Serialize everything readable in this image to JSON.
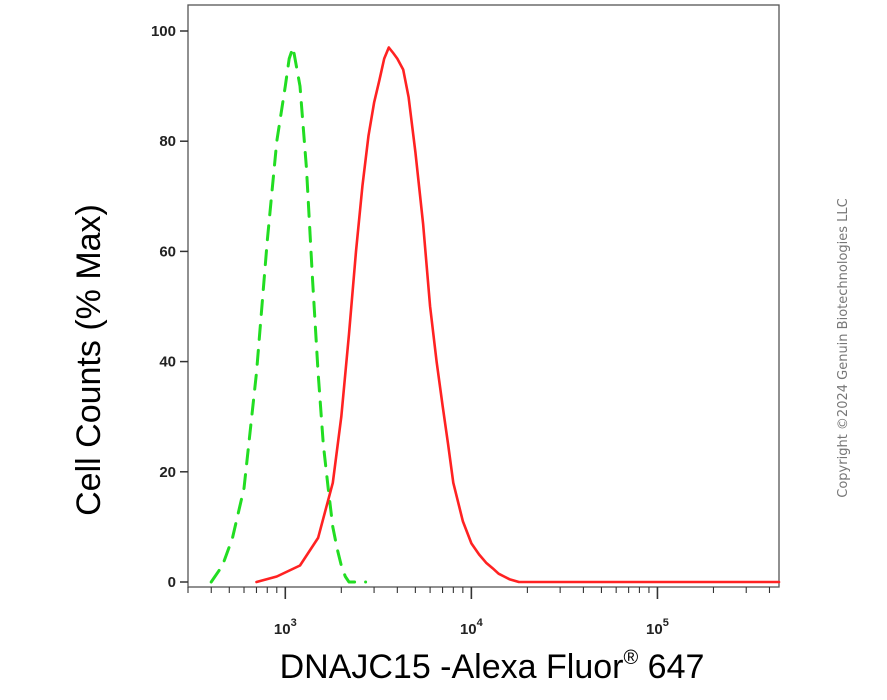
{
  "chart_data": {
    "type": "line",
    "title": "",
    "xlabel": "DNAJC15 -Alexa Fluor",
    "xlabel_sup": "®",
    "xlabel_tail": " 647",
    "ylabel": "Cell Counts (% Max)",
    "x_scale": "log",
    "xlim": [
      300,
      450000
    ],
    "ylim": [
      0,
      100
    ],
    "grid": false,
    "legend": "none",
    "y_ticks": [
      0,
      20,
      40,
      60,
      80,
      100
    ],
    "y_tick_labels": [
      "0",
      "20",
      "40",
      "60",
      "80",
      "100"
    ],
    "x_major_ticks": [
      {
        "value": 1000,
        "base": "10",
        "exp": "3"
      },
      {
        "value": 10000,
        "base": "10",
        "exp": "4"
      },
      {
        "value": 100000,
        "base": "10",
        "exp": "5"
      }
    ],
    "series": [
      {
        "color": "#22dd22",
        "dash": true,
        "x": [
          400,
          460,
          520,
          600,
          700,
          800,
          900,
          1000,
          1050,
          1100,
          1200,
          1300,
          1400,
          1500,
          1600,
          1700,
          1800,
          1900,
          2000,
          2100,
          2200,
          2400,
          2700
        ],
        "y": [
          0,
          3,
          8,
          17,
          38,
          62,
          80,
          90,
          95,
          97,
          90,
          75,
          55,
          38,
          25,
          17,
          10,
          6,
          3,
          1,
          0,
          0,
          0
        ]
      },
      {
        "color": "#ff2222",
        "dash": false,
        "x": [
          700,
          900,
          1200,
          1500,
          1800,
          2000,
          2200,
          2400,
          2600,
          2800,
          3000,
          3200,
          3400,
          3600,
          3800,
          4000,
          4300,
          4600,
          5000,
          5500,
          6000,
          6500,
          7000,
          7500,
          8000,
          9000,
          10000,
          11000,
          12000,
          13000,
          14000,
          15000,
          16000,
          18000,
          25000,
          60000,
          200000,
          450000
        ],
        "y": [
          0,
          1,
          3,
          8,
          18,
          30,
          45,
          60,
          72,
          81,
          87,
          91,
          95,
          97,
          96,
          95,
          93,
          88,
          78,
          65,
          50,
          40,
          32,
          25,
          18,
          11,
          7,
          5,
          3.5,
          2.5,
          1.5,
          1,
          0.5,
          0,
          0,
          0,
          0,
          0
        ]
      }
    ]
  },
  "copyright": "Copyright ©2024 Genuin Biotechnologies LLC"
}
